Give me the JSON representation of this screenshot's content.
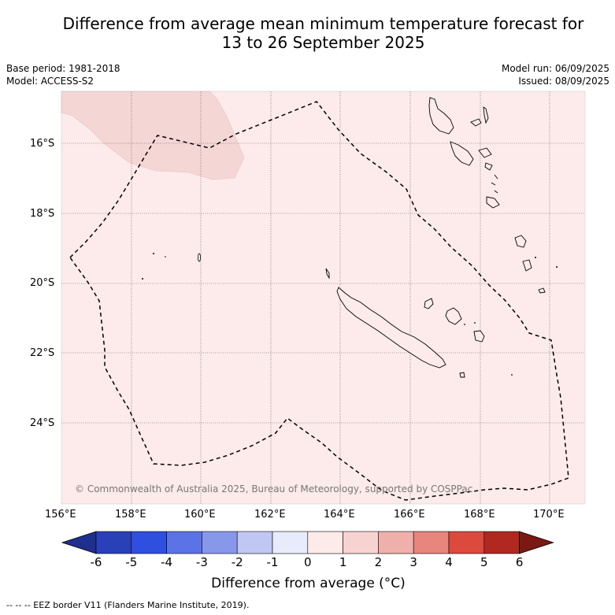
{
  "title_line1": "Difference from average mean minimum temperature forecast for",
  "title_line2": "13 to 26 September 2025",
  "meta": {
    "base_period": "Base period: 1981-2018",
    "model": "Model: ACCESS-S2",
    "model_run": "Model run: 06/09/2025",
    "issued": "Issued: 08/09/2025"
  },
  "credit": "© Commonwealth of Australia 2025, Bureau of Meteorology, supported by COSPPac",
  "footnote": "--  --  -- EEZ border V11 (Flanders Marine Institute, 2019).",
  "colorbar": {
    "title": "Difference from average (°C)",
    "ticks": [
      "-6",
      "-5",
      "-4",
      "-3",
      "-2",
      "-1",
      "0",
      "1",
      "2",
      "3",
      "4",
      "5",
      "6"
    ],
    "colors": [
      "#1f2f8f",
      "#2940b8",
      "#2f4fe0",
      "#5b73e6",
      "#8798ea",
      "#c0c7f3",
      "#e8ebfb",
      "#fdebe9",
      "#f6d3d1",
      "#efb0ab",
      "#e8857d",
      "#dc4a3e",
      "#b0281f",
      "#7a1812"
    ]
  },
  "map": {
    "lat_labels": [
      "16°S",
      "18°S",
      "20°S",
      "22°S",
      "24°S"
    ],
    "lon_labels": [
      "156°E",
      "158°E",
      "160°E",
      "162°E",
      "164°E",
      "166°E",
      "168°E",
      "170°E"
    ],
    "background_color": "#fcebea",
    "anomaly_patch_color": "#f4d6d4"
  }
}
